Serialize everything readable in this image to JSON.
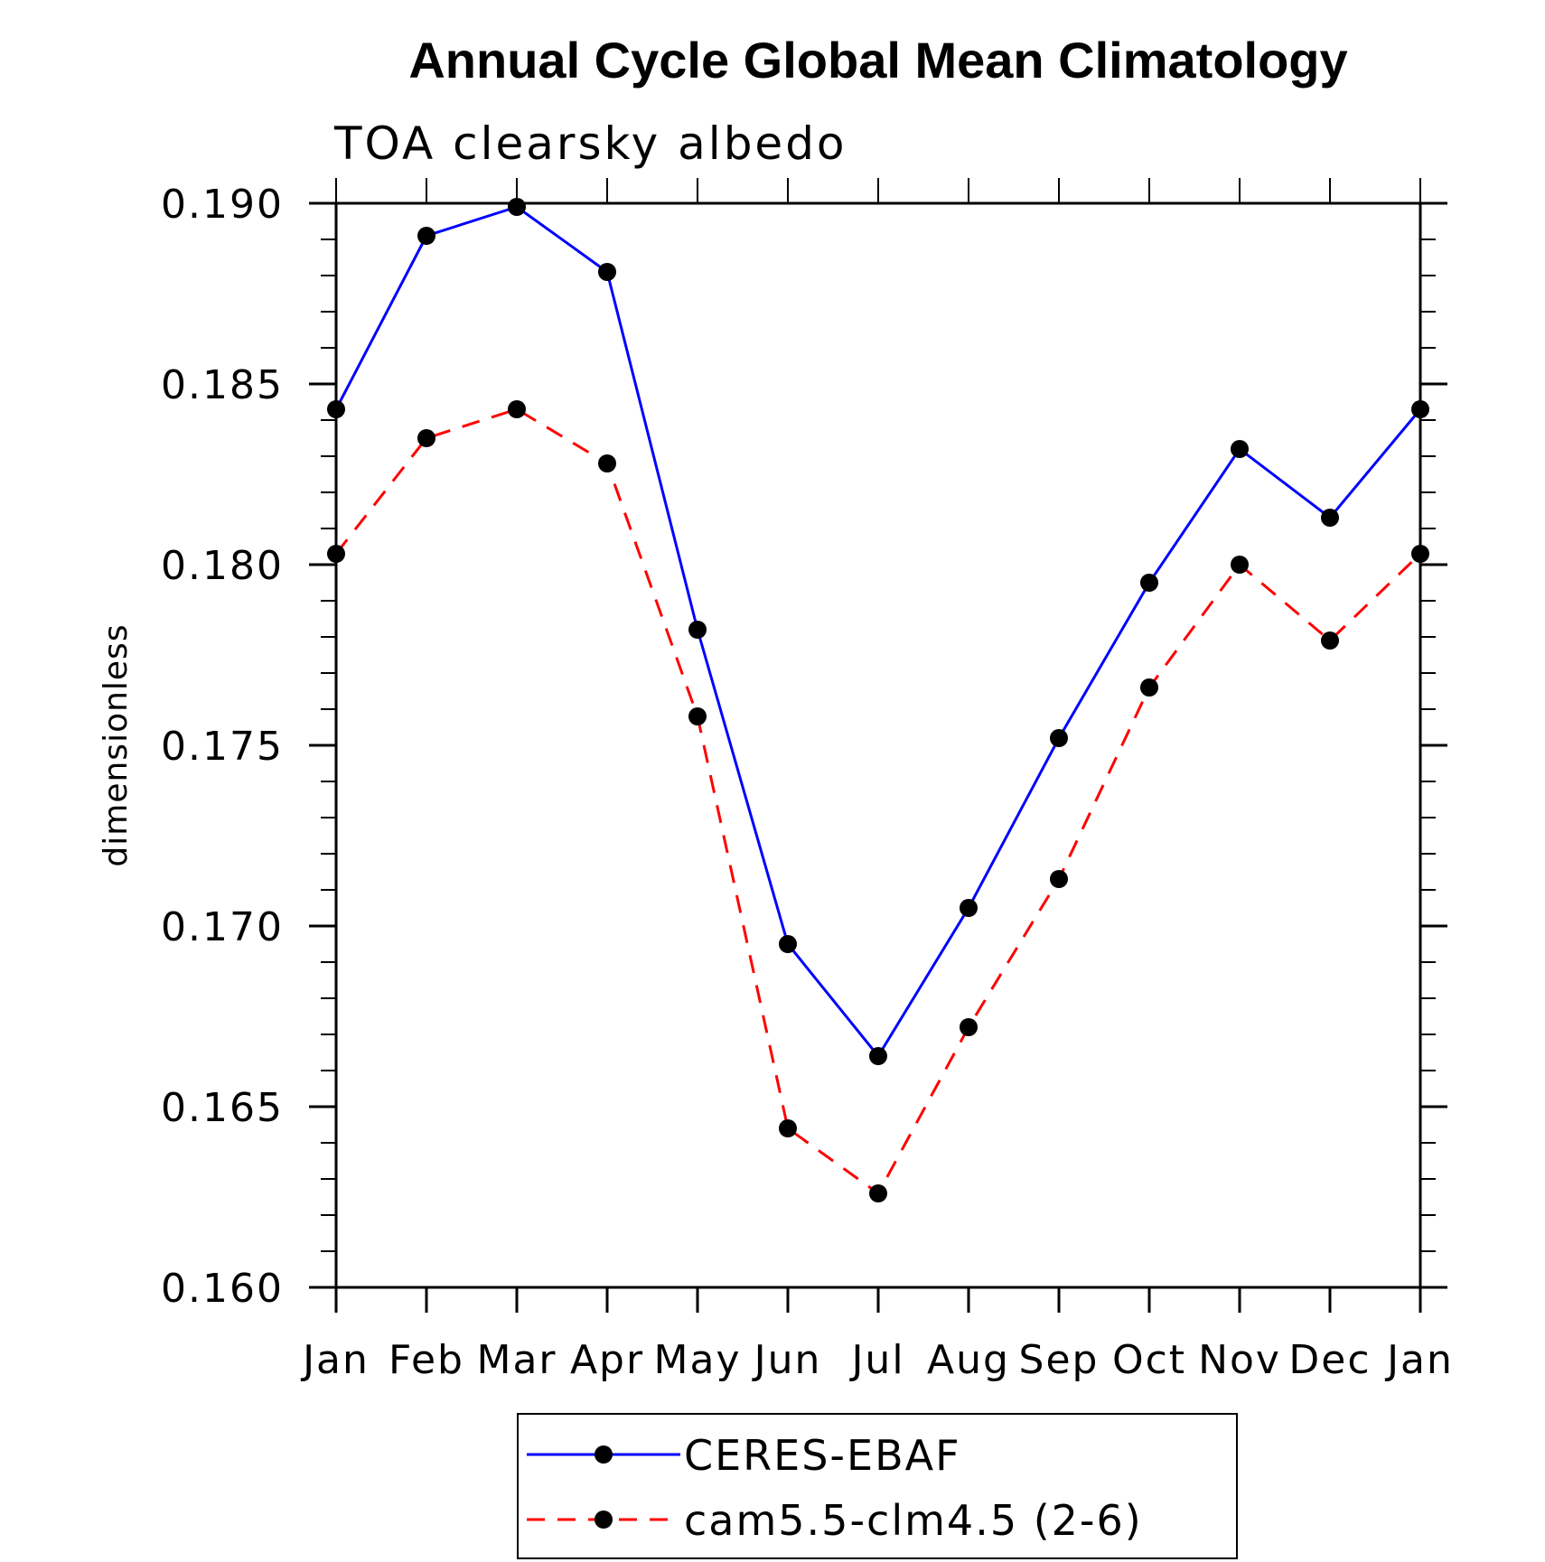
{
  "chart_data": {
    "type": "line",
    "title": "Annual Cycle Global Mean Climatology",
    "subtitle": "TOA clearsky albedo",
    "xlabel": "",
    "ylabel": "dimensionless",
    "categories": [
      "Jan",
      "Feb",
      "Mar",
      "Apr",
      "May",
      "Jun",
      "Jul",
      "Aug",
      "Sep",
      "Oct",
      "Nov",
      "Dec",
      "Jan"
    ],
    "ylim": [
      0.16,
      0.19
    ],
    "yticks": [
      "0.160",
      "0.165",
      "0.170",
      "0.175",
      "0.180",
      "0.185",
      "0.190"
    ],
    "yticks_values": [
      0.16,
      0.165,
      0.17,
      0.175,
      0.18,
      0.185,
      0.19
    ],
    "grid": false,
    "legend_position": "bottom-center",
    "series": [
      {
        "name": "CERES-EBAF",
        "color": "#0000ff",
        "line_style": "solid",
        "marker": "filled-circle",
        "values": [
          0.1843,
          0.1891,
          0.1899,
          0.1881,
          0.1782,
          0.1695,
          0.1664,
          0.1705,
          0.1752,
          0.1795,
          0.1832,
          0.1813,
          0.1843
        ]
      },
      {
        "name": "cam5.5-clm4.5 (2-6)",
        "color": "#ff0000",
        "line_style": "dashed",
        "marker": "filled-circle",
        "values": [
          0.1803,
          0.1835,
          0.1843,
          0.1828,
          0.1758,
          0.1644,
          0.1626,
          0.1672,
          0.1713,
          0.1766,
          0.18,
          0.1779,
          0.1803
        ]
      }
    ]
  }
}
